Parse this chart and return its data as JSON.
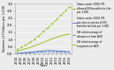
{
  "years": [
    2004,
    2005,
    2006,
    2007,
    2008,
    2009,
    2010,
    2011,
    2012,
    2013,
    2014,
    2015,
    2016
  ],
  "recipients_200fpl": [
    0.3,
    0.45,
    0.62,
    0.8,
    1.02,
    1.28,
    1.55,
    1.82,
    2.1,
    2.4,
    2.7,
    3.0,
    3.3
  ],
  "allowances_200fpl": [
    0.04,
    0.06,
    0.08,
    0.11,
    0.14,
    0.17,
    0.2,
    0.22,
    0.22,
    0.2,
    0.18,
    0.16,
    0.14
  ],
  "allowances_national": [
    0.03,
    0.04,
    0.05,
    0.07,
    0.09,
    0.11,
    0.13,
    0.14,
    0.13,
    0.12,
    0.11,
    0.1,
    0.09
  ],
  "recipients_national": [
    0.18,
    0.26,
    0.35,
    0.44,
    0.55,
    0.67,
    0.8,
    0.92,
    1.04,
    1.15,
    1.25,
    1.33,
    1.38
  ],
  "legend_labels": [
    "States under 100% FPL\nallowed SSI benefits for kids\nper 1,000",
    "States under 100% FPL\npay low recipients of SSI\nbenefits for kids per 1,000",
    "SSI initial average of\nallowances from ASD",
    "SSI initial average of\nrecipients for ASD"
  ],
  "ylabel": "Number of Children per 1,000",
  "xlabel": "Year",
  "ylim": [
    0,
    3.5
  ],
  "yticks": [
    0.0,
    0.5,
    1.0,
    1.5,
    2.0,
    2.5,
    3.0,
    3.5
  ],
  "background_color": "#ececec",
  "line1_color": "#8fbc00",
  "line2_color": "#4472c4",
  "line3_color": "#4472c4",
  "line4_color": "#8fbc00"
}
